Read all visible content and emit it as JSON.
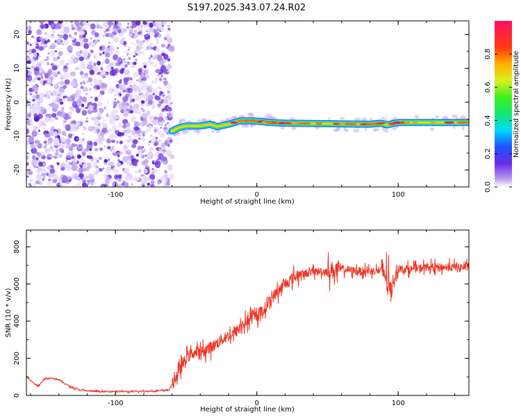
{
  "title": "S197.2025.343.07.24.R02",
  "chart_data": [
    {
      "type": "heatmap",
      "title": "S197.2025.343.07.24.R02",
      "xlabel": "Height of straight line (km)",
      "ylabel": "Frequency (Hz)",
      "xlim": [
        -163,
        150
      ],
      "ylim": [
        -25,
        24
      ],
      "x_ticks": [
        -100,
        0,
        100
      ],
      "y_ticks": [
        -20,
        -10,
        0,
        10,
        20
      ],
      "noise_region_x": [
        -163,
        -60
      ],
      "signal_track": {
        "x": [
          -60,
          -55,
          -50,
          -40,
          -33,
          -28,
          -20,
          -12,
          -5,
          0,
          10,
          20,
          40,
          60,
          80,
          88,
          92,
          100,
          120,
          140,
          150
        ],
        "frequency": [
          -8.5,
          -7.5,
          -7,
          -7,
          -6.5,
          -7.2,
          -6.5,
          -5.5,
          -5.5,
          -5.6,
          -6,
          -6.2,
          -6.3,
          -6.4,
          -6.5,
          -6.2,
          -6.7,
          -6,
          -6,
          -6,
          -6
        ]
      },
      "colorbar": {
        "label": "Normalized spectral amplitude",
        "range": [
          0,
          1
        ],
        "ticks": [
          0.0,
          0.2,
          0.4,
          0.6,
          0.8
        ]
      }
    },
    {
      "type": "line",
      "xlabel": "Height of straight line (km)",
      "ylabel": "SNR (10 * v/v)",
      "xlim": [
        -163,
        150
      ],
      "ylim": [
        0,
        890
      ],
      "x_ticks": [
        -100,
        0,
        100
      ],
      "y_ticks": [
        0,
        200,
        400,
        600,
        800
      ],
      "color": "#ee3322",
      "series": [
        {
          "name": "SNR",
          "x": [
            -163,
            -160,
            -155,
            -150,
            -145,
            -140,
            -135,
            -130,
            -125,
            -120,
            -110,
            -100,
            -90,
            -80,
            -70,
            -62,
            -55,
            -50,
            -45,
            -40,
            -35,
            -30,
            -25,
            -20,
            -15,
            -10,
            -5,
            0,
            5,
            10,
            15,
            20,
            25,
            30,
            40,
            50,
            60,
            70,
            80,
            90,
            94,
            100,
            110,
            120,
            130,
            140,
            150
          ],
          "values": [
            100,
            80,
            50,
            90,
            95,
            85,
            60,
            40,
            30,
            25,
            20,
            22,
            20,
            22,
            25,
            30,
            130,
            200,
            230,
            230,
            250,
            270,
            300,
            320,
            340,
            380,
            410,
            430,
            460,
            520,
            560,
            600,
            630,
            650,
            665,
            670,
            680,
            670,
            670,
            670,
            560,
            680,
            680,
            690,
            690,
            690,
            690
          ]
        }
      ]
    }
  ]
}
